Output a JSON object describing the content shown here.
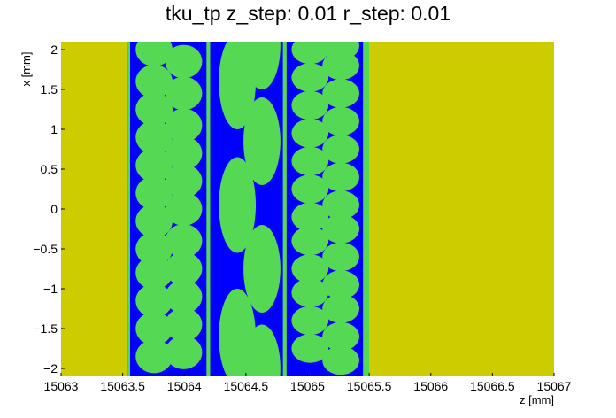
{
  "chart_data": {
    "type": "heatmap",
    "title": "tku_tp z_step: 0.01 r_step: 0.01",
    "xlabel": "z [mm]",
    "ylabel": "x [mm]",
    "xlim": [
      15063,
      15067
    ],
    "ylim": [
      -2.1,
      2.1
    ],
    "x_ticks": [
      15063,
      15063.5,
      15064,
      15064.5,
      15065,
      15065.5,
      15066,
      15066.5,
      15067
    ],
    "x_tick_labels": [
      "15063",
      "15063.5",
      "15064",
      "15064.5",
      "15065",
      "15065.5",
      "15066",
      "15066.5",
      "15067"
    ],
    "y_ticks": [
      2,
      1.5,
      1,
      0.5,
      0,
      -0.5,
      -1,
      -1.5,
      -2
    ],
    "y_tick_labels": [
      "2",
      "1.5",
      "1",
      "0.5",
      "0",
      "−0.5",
      "−1",
      "−1.5",
      "−2"
    ],
    "colors": {
      "outer": "#cccc00",
      "band": "#0000ff",
      "fiber": "#55d955"
    },
    "regions": [
      {
        "material": "outer",
        "z": [
          15063,
          15063.54
        ]
      },
      {
        "material": "band",
        "z": [
          15063.54,
          15065.5
        ]
      },
      {
        "material": "outer",
        "z": [
          15065.5,
          15067
        ]
      }
    ],
    "stripes": [
      {
        "z": [
          15063.54,
          15063.56
        ]
      },
      {
        "z": [
          15064.18,
          15064.21
        ]
      },
      {
        "z": [
          15064.8,
          15064.83
        ]
      },
      {
        "z": [
          15065.45,
          15065.5
        ]
      }
    ],
    "fiber_columns": [
      {
        "zc": 15063.755,
        "rz": 0.15,
        "rx": 0.21,
        "xc": [
          2.0,
          1.6,
          1.25,
          0.9,
          0.55,
          0.2,
          -0.15,
          -0.5,
          -0.8,
          -1.15,
          -1.5,
          -1.85
        ]
      },
      {
        "zc": 15063.995,
        "rz": 0.15,
        "rx": 0.21,
        "xc": [
          1.85,
          1.45,
          1.05,
          0.7,
          0.35,
          0.0,
          -0.4,
          -0.75,
          -1.1,
          -1.45,
          -1.8
        ]
      },
      {
        "zc": 15064.43,
        "rz": 0.15,
        "rx": 0.6,
        "xc": [
          1.6,
          0.05,
          -1.6
        ]
      },
      {
        "zc": 15064.63,
        "rz": 0.15,
        "rx": 0.55,
        "xc": [
          2.05,
          0.85,
          -0.75,
          -2.0
        ]
      },
      {
        "zc": 15065.02,
        "rz": 0.15,
        "rx": 0.18,
        "xc": [
          2.0,
          1.65,
          1.3,
          0.95,
          0.6,
          0.25,
          -0.1,
          -0.4,
          -0.75,
          -1.05,
          -1.4,
          -1.75
        ]
      },
      {
        "zc": 15065.27,
        "rz": 0.15,
        "rx": 0.18,
        "xc": [
          2.05,
          1.8,
          1.45,
          1.1,
          0.75,
          0.4,
          0.05,
          -0.25,
          -0.6,
          -0.95,
          -1.25,
          -1.6,
          -1.9
        ]
      }
    ]
  }
}
